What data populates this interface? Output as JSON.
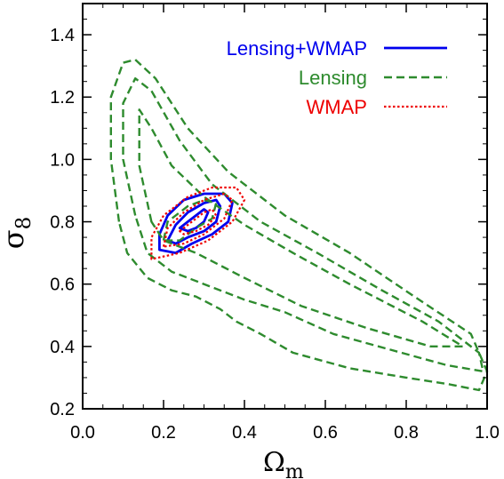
{
  "chart_data": {
    "type": "contour",
    "xlabel": "Ωm",
    "ylabel": "σ8",
    "xlim": [
      0.0,
      1.0
    ],
    "ylim": [
      0.2,
      1.5
    ],
    "xticks": [
      0.0,
      0.2,
      0.4,
      0.6,
      0.8,
      1.0
    ],
    "xtick_labels": [
      "0.0",
      "0.2",
      "0.4",
      "0.6",
      "0.8",
      "1.0"
    ],
    "yticks": [
      0.2,
      0.4,
      0.6,
      0.8,
      1.0,
      1.2,
      1.4
    ],
    "ytick_labels": [
      "0.2",
      "0.4",
      "0.6",
      "0.8",
      "1.0",
      "1.2",
      "1.4"
    ],
    "legend_position": "top-right",
    "series": [
      {
        "name": "Lensing+WMAP",
        "color": "#0000ee",
        "style": "solid",
        "contours": [
          [
            [
              0.24,
              0.78
            ],
            [
              0.26,
              0.8
            ],
            [
              0.28,
              0.82
            ],
            [
              0.3,
              0.84
            ],
            [
              0.31,
              0.83
            ],
            [
              0.3,
              0.8
            ],
            [
              0.28,
              0.78
            ],
            [
              0.26,
              0.77
            ],
            [
              0.24,
              0.78
            ]
          ],
          [
            [
              0.21,
              0.74
            ],
            [
              0.23,
              0.79
            ],
            [
              0.26,
              0.83
            ],
            [
              0.3,
              0.86
            ],
            [
              0.33,
              0.87
            ],
            [
              0.34,
              0.85
            ],
            [
              0.33,
              0.8
            ],
            [
              0.3,
              0.77
            ],
            [
              0.26,
              0.75
            ],
            [
              0.23,
              0.73
            ],
            [
              0.21,
              0.74
            ]
          ],
          [
            [
              0.19,
              0.71
            ],
            [
              0.19,
              0.76
            ],
            [
              0.21,
              0.82
            ],
            [
              0.25,
              0.87
            ],
            [
              0.3,
              0.89
            ],
            [
              0.35,
              0.89
            ],
            [
              0.37,
              0.86
            ],
            [
              0.36,
              0.8
            ],
            [
              0.32,
              0.76
            ],
            [
              0.27,
              0.73
            ],
            [
              0.23,
              0.7
            ],
            [
              0.19,
              0.71
            ]
          ]
        ]
      },
      {
        "name": "Lensing",
        "color": "#2e8b2e",
        "style": "dashed",
        "contours": [
          [
            [
              0.2,
              0.74
            ],
            [
              0.21,
              0.8
            ],
            [
              0.26,
              0.85
            ],
            [
              0.3,
              0.87
            ],
            [
              0.33,
              0.86
            ],
            [
              0.32,
              0.81
            ],
            [
              0.28,
              0.78
            ],
            [
              0.24,
              0.74
            ],
            [
              0.2,
              0.74
            ]
          ],
          [
            [
              0.17,
              0.8
            ],
            [
              0.14,
              0.98
            ],
            [
              0.14,
              1.16
            ],
            [
              0.17,
              1.1
            ],
            [
              0.22,
              0.98
            ],
            [
              0.3,
              0.88
            ],
            [
              0.4,
              0.79
            ],
            [
              0.52,
              0.7
            ],
            [
              0.66,
              0.6
            ],
            [
              0.84,
              0.48
            ],
            [
              0.94,
              0.4
            ],
            [
              0.86,
              0.4
            ],
            [
              0.7,
              0.46
            ],
            [
              0.54,
              0.53
            ],
            [
              0.4,
              0.62
            ],
            [
              0.28,
              0.7
            ],
            [
              0.2,
              0.74
            ],
            [
              0.17,
              0.8
            ]
          ],
          [
            [
              0.13,
              0.82
            ],
            [
              0.1,
              1.0
            ],
            [
              0.1,
              1.18
            ],
            [
              0.13,
              1.26
            ],
            [
              0.17,
              1.22
            ],
            [
              0.24,
              1.06
            ],
            [
              0.32,
              0.92
            ],
            [
              0.44,
              0.8
            ],
            [
              0.58,
              0.7
            ],
            [
              0.74,
              0.58
            ],
            [
              0.88,
              0.48
            ],
            [
              0.98,
              0.38
            ],
            [
              0.99,
              0.32
            ],
            [
              0.9,
              0.34
            ],
            [
              0.76,
              0.39
            ],
            [
              0.62,
              0.44
            ],
            [
              0.5,
              0.51
            ],
            [
              0.4,
              0.55
            ],
            [
              0.3,
              0.6
            ],
            [
              0.22,
              0.64
            ],
            [
              0.16,
              0.7
            ],
            [
              0.13,
              0.82
            ]
          ],
          [
            [
              0.09,
              0.8
            ],
            [
              0.07,
              1.0
            ],
            [
              0.07,
              1.2
            ],
            [
              0.1,
              1.31
            ],
            [
              0.13,
              1.32
            ],
            [
              0.18,
              1.26
            ],
            [
              0.26,
              1.1
            ],
            [
              0.36,
              0.96
            ],
            [
              0.5,
              0.82
            ],
            [
              0.66,
              0.7
            ],
            [
              0.82,
              0.56
            ],
            [
              0.96,
              0.44
            ],
            [
              1.0,
              0.32
            ],
            [
              0.98,
              0.26
            ],
            [
              0.9,
              0.28
            ],
            [
              0.8,
              0.3
            ],
            [
              0.66,
              0.33
            ],
            [
              0.52,
              0.38
            ],
            [
              0.44,
              0.44
            ],
            [
              0.38,
              0.48
            ],
            [
              0.34,
              0.52
            ],
            [
              0.28,
              0.56
            ],
            [
              0.22,
              0.58
            ],
            [
              0.16,
              0.62
            ],
            [
              0.11,
              0.7
            ],
            [
              0.09,
              0.8
            ]
          ]
        ]
      },
      {
        "name": "WMAP",
        "color": "#ee0000",
        "style": "dotted",
        "contours": [
          [
            [
              0.24,
              0.77
            ],
            [
              0.27,
              0.8
            ],
            [
              0.3,
              0.83
            ],
            [
              0.32,
              0.84
            ],
            [
              0.33,
              0.82
            ],
            [
              0.31,
              0.79
            ],
            [
              0.28,
              0.77
            ],
            [
              0.25,
              0.76
            ],
            [
              0.24,
              0.77
            ]
          ],
          [
            [
              0.2,
              0.72
            ],
            [
              0.21,
              0.78
            ],
            [
              0.25,
              0.83
            ],
            [
              0.3,
              0.87
            ],
            [
              0.35,
              0.89
            ],
            [
              0.37,
              0.87
            ],
            [
              0.35,
              0.81
            ],
            [
              0.3,
              0.76
            ],
            [
              0.25,
              0.73
            ],
            [
              0.2,
              0.72
            ]
          ],
          [
            [
              0.17,
              0.68
            ],
            [
              0.17,
              0.75
            ],
            [
              0.2,
              0.82
            ],
            [
              0.26,
              0.88
            ],
            [
              0.32,
              0.91
            ],
            [
              0.38,
              0.91
            ],
            [
              0.4,
              0.87
            ],
            [
              0.37,
              0.8
            ],
            [
              0.31,
              0.74
            ],
            [
              0.24,
              0.7
            ],
            [
              0.17,
              0.68
            ]
          ]
        ]
      }
    ]
  }
}
